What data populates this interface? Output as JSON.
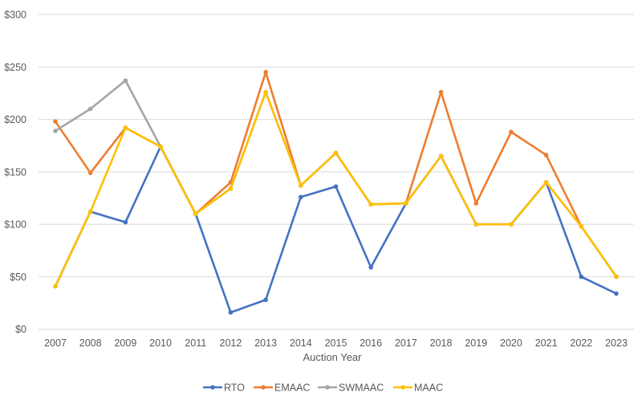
{
  "chart_data": {
    "type": "line",
    "title": "",
    "xlabel": "Auction Year",
    "ylabel": "",
    "ylim": [
      0,
      300
    ],
    "yticks": [
      0,
      50,
      100,
      150,
      200,
      250,
      300
    ],
    "ytick_labels": [
      "$0",
      "$50",
      "$100",
      "$150",
      "$200",
      "$250",
      "$300"
    ],
    "grid": "horizontal",
    "legend": "bottom",
    "categories": [
      "2007",
      "2008",
      "2009",
      "2010",
      "2011",
      "2012",
      "2013",
      "2014",
      "2015",
      "2016",
      "2017",
      "2018",
      "2019",
      "2020",
      "2021",
      "2022",
      "2023"
    ],
    "series": [
      {
        "name": "RTO",
        "color": "#4472C4",
        "values": [
          41,
          112,
          102,
          174,
          110,
          16,
          28,
          126,
          136,
          59,
          120,
          165,
          100,
          100,
          140,
          50,
          34
        ]
      },
      {
        "name": "EMAAC",
        "color": "#ED7D31",
        "values": [
          198,
          149,
          192,
          174,
          110,
          140,
          245,
          137,
          168,
          119,
          120,
          226,
          120,
          188,
          166,
          98,
          50
        ]
      },
      {
        "name": "SWMAAC",
        "color": "#A5A5A5",
        "values": [
          189,
          210,
          237,
          174,
          110,
          134,
          226,
          137,
          168,
          119,
          120,
          165,
          100,
          100,
          140,
          98,
          50
        ]
      },
      {
        "name": "MAAC",
        "color": "#FFC000",
        "values": [
          41,
          112,
          192,
          174,
          110,
          134,
          226,
          137,
          168,
          119,
          120,
          165,
          100,
          100,
          140,
          98,
          50
        ]
      }
    ]
  }
}
